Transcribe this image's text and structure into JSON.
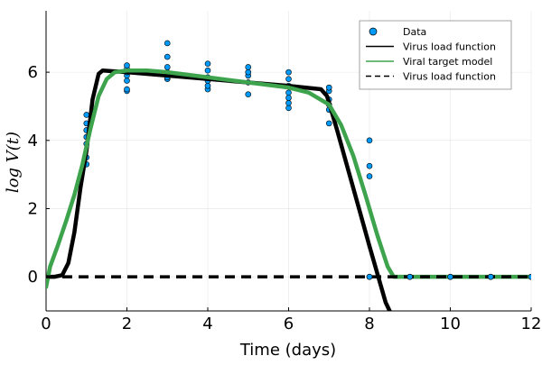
{
  "chart_data": {
    "type": "line",
    "title": "",
    "xlabel": "Time (days)",
    "ylabel": "log V(t)",
    "xlim": [
      0,
      12
    ],
    "ylim": [
      -1,
      7.8
    ],
    "xticks": [
      0,
      2,
      4,
      6,
      8,
      10,
      12
    ],
    "xtick_labels": [
      "0",
      "2",
      "4",
      "6",
      "8",
      "10",
      "12"
    ],
    "yticks": [
      0,
      2,
      4,
      6
    ],
    "ytick_labels": [
      "0",
      "2",
      "4",
      "6"
    ],
    "grid": true,
    "legend_position": "top-right",
    "legend": [
      {
        "label": "Data",
        "kind": "marker",
        "color": "#009AFA"
      },
      {
        "label": "Virus load function",
        "kind": "solid",
        "color": "#000000"
      },
      {
        "label": "Viral target model",
        "kind": "solid",
        "color": "#3DA44D"
      },
      {
        "label": "Virus load function",
        "kind": "dashed",
        "color": "#000000"
      }
    ],
    "series": [
      {
        "name": "Data",
        "type": "scatter",
        "color": "#009AFA",
        "points": [
          [
            1,
            3.3
          ],
          [
            1,
            3.5
          ],
          [
            1,
            3.9
          ],
          [
            1,
            4.1
          ],
          [
            1,
            4.3
          ],
          [
            1,
            4.5
          ],
          [
            1,
            4.75
          ],
          [
            2,
            5.45
          ],
          [
            2,
            5.5
          ],
          [
            2,
            5.75
          ],
          [
            2,
            5.9
          ],
          [
            2,
            6.0
          ],
          [
            2,
            6.1
          ],
          [
            2,
            6.2
          ],
          [
            3,
            5.8
          ],
          [
            3,
            5.85
          ],
          [
            3,
            6.0
          ],
          [
            3,
            6.15
          ],
          [
            3,
            6.45
          ],
          [
            3,
            6.85
          ],
          [
            4,
            5.5
          ],
          [
            4,
            5.6
          ],
          [
            4,
            5.75
          ],
          [
            4,
            5.85
          ],
          [
            4,
            6.05
          ],
          [
            4,
            6.25
          ],
          [
            5,
            5.35
          ],
          [
            5,
            5.7
          ],
          [
            5,
            5.9
          ],
          [
            5,
            6.0
          ],
          [
            5,
            6.15
          ],
          [
            6,
            4.95
          ],
          [
            6,
            5.1
          ],
          [
            6,
            5.25
          ],
          [
            6,
            5.4
          ],
          [
            6,
            5.6
          ],
          [
            6,
            5.8
          ],
          [
            6,
            6.0
          ],
          [
            7,
            4.5
          ],
          [
            7,
            4.9
          ],
          [
            7,
            5.05
          ],
          [
            7,
            5.2
          ],
          [
            7,
            5.45
          ],
          [
            7,
            5.55
          ],
          [
            8,
            0
          ],
          [
            8,
            2.95
          ],
          [
            8,
            3.25
          ],
          [
            8,
            4.0
          ],
          [
            9,
            0
          ],
          [
            10,
            0
          ],
          [
            11,
            0
          ],
          [
            12,
            0
          ]
        ]
      },
      {
        "name": "Virus load function",
        "type": "line",
        "color": "#000000",
        "points": [
          [
            0,
            0
          ],
          [
            0.2,
            0.0
          ],
          [
            0.4,
            0.05
          ],
          [
            0.55,
            0.4
          ],
          [
            0.7,
            1.3
          ],
          [
            0.85,
            2.6
          ],
          [
            1.0,
            3.7
          ],
          [
            1.15,
            5.2
          ],
          [
            1.3,
            5.95
          ],
          [
            1.4,
            6.05
          ],
          [
            2.0,
            6.0
          ],
          [
            3.0,
            5.9
          ],
          [
            4.0,
            5.8
          ],
          [
            5.0,
            5.7
          ],
          [
            6.0,
            5.6
          ],
          [
            6.8,
            5.5
          ],
          [
            6.95,
            5.3
          ],
          [
            7.2,
            4.3
          ],
          [
            7.6,
            2.6
          ],
          [
            8.0,
            0.9
          ],
          [
            8.4,
            -0.75
          ],
          [
            8.5,
            -1.0
          ]
        ]
      },
      {
        "name": "Viral target model",
        "type": "line",
        "color": "#3DA44D",
        "points": [
          [
            0,
            -0.3
          ],
          [
            0.1,
            0.3
          ],
          [
            0.3,
            0.95
          ],
          [
            0.5,
            1.65
          ],
          [
            0.7,
            2.4
          ],
          [
            0.9,
            3.3
          ],
          [
            1.1,
            4.35
          ],
          [
            1.3,
            5.3
          ],
          [
            1.5,
            5.8
          ],
          [
            1.7,
            6.0
          ],
          [
            2.0,
            6.05
          ],
          [
            2.5,
            6.05
          ],
          [
            3.0,
            6.0
          ],
          [
            4.0,
            5.85
          ],
          [
            5.0,
            5.7
          ],
          [
            6.0,
            5.55
          ],
          [
            6.5,
            5.4
          ],
          [
            7.0,
            5.05
          ],
          [
            7.3,
            4.45
          ],
          [
            7.6,
            3.55
          ],
          [
            7.9,
            2.4
          ],
          [
            8.2,
            1.2
          ],
          [
            8.45,
            0.3
          ],
          [
            8.6,
            0
          ],
          [
            9,
            0
          ],
          [
            10,
            0
          ],
          [
            11,
            0
          ],
          [
            12,
            0
          ]
        ]
      },
      {
        "name": "Virus load function",
        "type": "dashed",
        "color": "#000000",
        "points": [
          [
            0,
            0
          ],
          [
            0.4,
            0
          ],
          [
            8.6,
            0
          ],
          [
            12,
            0
          ]
        ]
      }
    ]
  }
}
